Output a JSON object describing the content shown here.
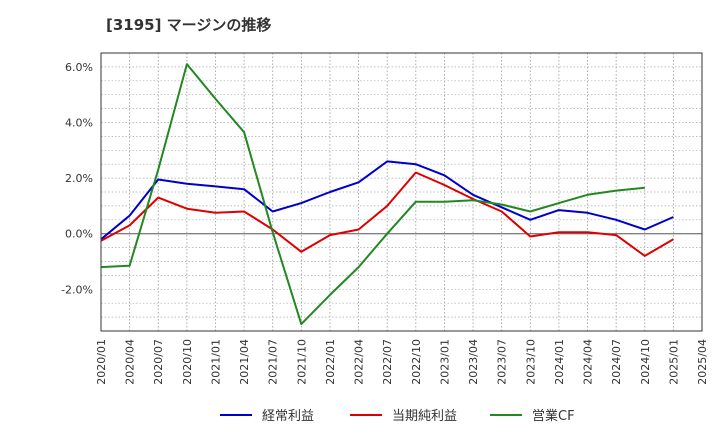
{
  "chart_data": {
    "type": "line",
    "title": "[3195]  マージンの推移",
    "xlabel": "",
    "ylabel": "",
    "ylim": [
      -3.5,
      6.5
    ],
    "yticks": [
      "6.0%",
      "4.0%",
      "2.0%",
      "0.0%",
      "-2.0%"
    ],
    "ytick_values": [
      6,
      4,
      2,
      0,
      -2
    ],
    "categories": [
      "2020/01",
      "2020/04",
      "2020/07",
      "2020/10",
      "2021/01",
      "2021/04",
      "2021/07",
      "2021/10",
      "2022/01",
      "2022/04",
      "2022/07",
      "2022/10",
      "2023/01",
      "2023/04",
      "2023/07",
      "2023/10",
      "2024/01",
      "2024/04",
      "2024/07",
      "2024/10",
      "2025/01",
      "2025/04"
    ],
    "grid": true,
    "legend_position": "bottom",
    "series": [
      {
        "name": "経常利益",
        "color": "#0000cc",
        "values": [
          -0.2,
          0.65,
          1.95,
          1.8,
          1.7,
          1.6,
          0.8,
          1.1,
          1.5,
          1.85,
          2.6,
          2.5,
          2.1,
          1.4,
          0.95,
          0.5,
          0.85,
          0.75,
          0.5,
          0.15,
          0.6,
          null
        ]
      },
      {
        "name": "当期純利益",
        "color": "#dd0000",
        "values": [
          -0.25,
          0.3,
          1.3,
          0.9,
          0.75,
          0.8,
          0.15,
          -0.65,
          -0.05,
          0.15,
          1.0,
          2.2,
          1.75,
          1.25,
          0.8,
          -0.1,
          0.05,
          0.05,
          -0.05,
          -0.8,
          -0.2,
          null
        ]
      },
      {
        "name": "営業CF",
        "color": "#228822",
        "values": [
          -1.2,
          -1.15,
          2.3,
          6.1,
          4.85,
          3.65,
          0.05,
          -3.25,
          -2.2,
          -1.2,
          0.0,
          1.15,
          1.15,
          1.2,
          1.05,
          0.8,
          1.1,
          1.4,
          1.55,
          1.65,
          null,
          null
        ]
      }
    ]
  }
}
